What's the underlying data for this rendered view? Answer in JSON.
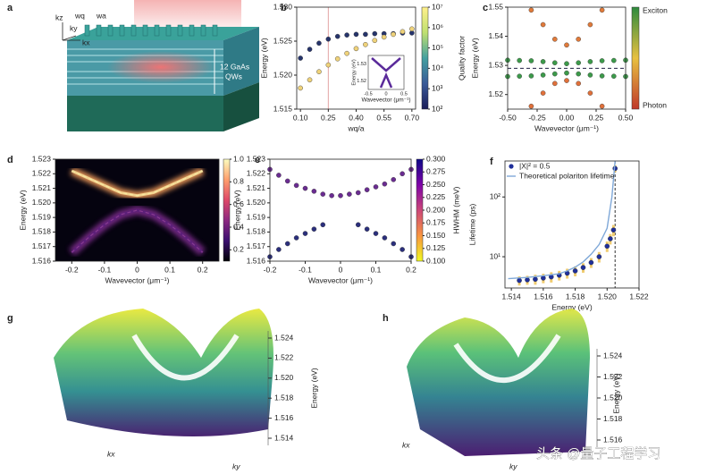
{
  "diagram": {
    "panel": "a",
    "axis_labels": [
      "kz",
      "ky",
      "kx"
    ],
    "widths": [
      "wq",
      "wa"
    ],
    "annotation": [
      "12 GaAs",
      "QWs"
    ]
  },
  "chart_data": [
    {
      "panel": "b",
      "type": "scatter",
      "xlabel": "wq/a",
      "ylabel": "Energy (eV)",
      "xlim": [
        0.08,
        0.72
      ],
      "xticks": [
        {
          "value": 0.1,
          "label": "0.10"
        },
        0.25,
        {
          "value": 0.4,
          "label": "0.40"
        },
        0.55,
        {
          "value": 0.7,
          "label": "0.70"
        }
      ],
      "ylim": [
        1.515,
        1.53
      ],
      "yticks": [
        1.515,
        {
          "value": 1.52,
          "label": "1.520"
        },
        1.525,
        {
          "value": 1.53,
          "label": "1.530"
        }
      ],
      "vlines": [
        0.25
      ],
      "vline_color": "#e4a3a3",
      "x": [
        0.1,
        0.15,
        0.2,
        0.25,
        0.3,
        0.35,
        0.4,
        0.45,
        0.5,
        0.55,
        0.6,
        0.65,
        0.7
      ],
      "series": [
        {
          "color": "#26346b",
          "values": [
            1.5225,
            1.5238,
            1.5247,
            1.5253,
            1.5257,
            1.5259,
            1.526,
            1.526,
            1.5261,
            1.5261,
            1.5261,
            1.5262,
            1.5262
          ]
        },
        {
          "color": "#efd27a",
          "values": [
            1.5181,
            1.5193,
            1.5205,
            1.5215,
            1.5224,
            1.5232,
            1.5239,
            1.5245,
            1.5251,
            1.5256,
            1.526,
            1.5264,
            1.5268
          ]
        }
      ],
      "colorbar": {
        "label": "Quality factor",
        "log": true,
        "lim": [
          100,
          10000000
        ],
        "colors": [
          "#1b1d58",
          "#3a5a98",
          "#44a0a0",
          "#bfe070",
          "#fff08a"
        ],
        "ticks": [
          {
            "value": 100,
            "label": "10²"
          },
          {
            "value": 1000,
            "label": "10³"
          },
          {
            "value": 10000,
            "label": "10⁴"
          },
          {
            "value": 100000,
            "label": "10⁵"
          },
          {
            "value": 1000000,
            "label": "10⁶"
          },
          {
            "value": 10000000,
            "label": "10⁷"
          }
        ]
      },
      "inset": {
        "xlabel": "Wavevector (μm⁻¹)",
        "ylabel": "Energy (eV)",
        "xlim": [
          -0.5,
          0.5
        ],
        "xticks": [
          -0.5,
          0,
          0.5
        ],
        "ylim": [
          1.515,
          1.535
        ],
        "yticks": [
          1.52,
          1.53
        ]
      }
    },
    {
      "panel": "c",
      "type": "scatter",
      "xlabel": "Wavevector (μm⁻¹)",
      "ylabel": "Energy (eV)",
      "xlim": [
        -0.5,
        0.5
      ],
      "xticks": [
        {
          "value": -0.5,
          "label": "-0.50"
        },
        -0.25,
        {
          "value": 0,
          "label": "0.00"
        },
        0.25,
        {
          "value": 0.5,
          "label": "0.50"
        }
      ],
      "ylim": [
        1.515,
        1.55
      ],
      "yticks": [
        1.52,
        1.53,
        1.54,
        1.55
      ],
      "hlines": [
        1.529
      ],
      "series": [
        {
          "color": "#e07a3a",
          "x": [
            -0.3,
            -0.2,
            -0.1,
            0,
            0.1,
            0.2,
            0.3
          ],
          "values": [
            1.549,
            1.544,
            1.539,
            1.537,
            1.539,
            1.544,
            1.549
          ]
        },
        {
          "color": "#3c9a4a",
          "x": [
            -0.5,
            -0.4,
            -0.3,
            -0.2,
            -0.1,
            0,
            0.1,
            0.2,
            0.3,
            0.4,
            0.5
          ],
          "values": [
            1.5318,
            1.5317,
            1.5316,
            1.5313,
            1.5309,
            1.5306,
            1.5309,
            1.5313,
            1.5316,
            1.5317,
            1.5318
          ]
        },
        {
          "color": "#3c9a4a",
          "x": [
            -0.5,
            -0.4,
            -0.3,
            -0.2,
            -0.1,
            0,
            0.1,
            0.2,
            0.3,
            0.4,
            0.5
          ],
          "values": [
            1.5262,
            1.5263,
            1.5264,
            1.5267,
            1.5271,
            1.5274,
            1.5271,
            1.5267,
            1.5264,
            1.5263,
            1.5262
          ]
        },
        {
          "color": "#e0703a",
          "x": [
            -0.3,
            -0.2,
            -0.1,
            0,
            0.1,
            0.2,
            0.3
          ],
          "values": [
            1.516,
            1.5205,
            1.5238,
            1.5248,
            1.5238,
            1.5205,
            1.516
          ]
        }
      ],
      "colorbar": {
        "top_label": "Exciton",
        "bottom_label": "Photon",
        "colors": [
          "#c0392b",
          "#e8c040",
          "#2e8b3e"
        ]
      }
    },
    {
      "panel": "d",
      "type": "density",
      "xlabel": "Wavevector (μm⁻¹)",
      "ylabel": "Energy (eV)",
      "xlim": [
        -0.25,
        0.25
      ],
      "xticks": [
        -0.2,
        -0.1,
        0,
        0.1,
        0.2
      ],
      "ylim": [
        1.516,
        1.523
      ],
      "yticks": [
        1.516,
        1.517,
        1.518,
        1.519,
        {
          "value": 1.52,
          "label": "1.520"
        },
        1.521,
        1.522,
        1.523
      ],
      "x": [
        -0.2,
        -0.15,
        -0.1,
        -0.05,
        0,
        0.05,
        0.1,
        0.15,
        0.2
      ],
      "series": [
        {
          "color": "#f7e7a0",
          "values": [
            1.5222,
            1.5217,
            1.5212,
            1.5207,
            1.5205,
            1.5207,
            1.5212,
            1.5217,
            1.5222
          ]
        },
        {
          "color": "#8a3b8f",
          "values": [
            1.5166,
            1.5176,
            1.5185,
            1.5192,
            1.5195,
            1.5192,
            1.5185,
            1.5176,
            1.5166
          ]
        }
      ],
      "colorbar": {
        "lim": [
          0.1,
          1
        ],
        "colors": [
          "#000004",
          "#3b0f70",
          "#8c2981",
          "#de4968",
          "#fe9f6d",
          "#fcfdbf"
        ],
        "ticks": [
          0.2,
          0.4,
          0.6,
          0.8,
          {
            "value": 1,
            "label": "1.0"
          }
        ]
      }
    },
    {
      "panel": "e",
      "type": "scatter",
      "xlabel": "Wavevector (μm⁻¹)",
      "ylabel": "Energy (eV)",
      "xlim": [
        -0.2,
        0.2
      ],
      "xticks": [
        -0.2,
        -0.1,
        0,
        0.1,
        0.2
      ],
      "ylim": [
        1.516,
        1.523
      ],
      "yticks": [
        1.516,
        1.517,
        1.518,
        1.519,
        {
          "value": 1.52,
          "label": "1.520"
        },
        1.521,
        1.522,
        1.523
      ],
      "series": [
        {
          "color": "#6a2c91",
          "x": [
            -0.2,
            -0.175,
            -0.15,
            -0.125,
            -0.1,
            -0.075,
            -0.05,
            -0.025,
            0,
            0.025,
            0.05,
            0.075,
            0.1,
            0.125,
            0.15,
            0.175,
            0.2
          ],
          "values": [
            1.5223,
            1.5219,
            1.5215,
            1.5212,
            1.521,
            1.5208,
            1.5206,
            1.5205,
            1.5205,
            1.5206,
            1.5207,
            1.5209,
            1.5211,
            1.5213,
            1.5216,
            1.522,
            1.5223
          ]
        },
        {
          "color": "#2b2f7c",
          "x": [
            -0.2,
            -0.175,
            -0.15,
            -0.125,
            -0.1,
            -0.075,
            -0.05,
            0.05,
            0.075,
            0.1,
            0.125,
            0.15,
            0.175,
            0.2
          ],
          "values": [
            1.5163,
            1.5168,
            1.5172,
            1.5176,
            1.5179,
            1.5182,
            1.5185,
            1.5185,
            1.5182,
            1.5179,
            1.5176,
            1.5172,
            1.5168,
            1.5163
          ]
        }
      ],
      "colorbar": {
        "label": "HWHM (meV)",
        "lim": [
          0.1,
          0.3
        ],
        "colors": [
          "#f0f921",
          "#f89540",
          "#cc4778",
          "#7e03a8",
          "#0d0887"
        ],
        "ticks": [
          {
            "value": 0.1,
            "label": "0.100"
          },
          0.125,
          {
            "value": 0.15,
            "label": "0.150"
          },
          0.175,
          {
            "value": 0.2,
            "label": "0.200"
          },
          0.225,
          {
            "value": 0.25,
            "label": "0.250"
          },
          0.275,
          {
            "value": 0.3,
            "label": "0.300"
          }
        ]
      }
    },
    {
      "panel": "f",
      "type": "scatter",
      "xlabel": "Energy (eV)",
      "ylabel": "Lifetime (ps)",
      "ylog": true,
      "xlim": [
        1.5136,
        1.522
      ],
      "xticks": [
        1.514,
        1.516,
        1.518,
        {
          "value": 1.52,
          "label": "1.520"
        },
        1.522
      ],
      "ylim": [
        3,
        400
      ],
      "yticks": [
        {
          "value": 10,
          "label": "10¹"
        },
        {
          "value": 100,
          "label": "10²"
        }
      ],
      "vlines": [
        1.5205
      ],
      "vline_color": "#333333",
      "legend": "upper left",
      "series": [
        {
          "name": "|X|² = 0.5",
          "color": "#1f2f9a",
          "error_color": "#f0cc70",
          "x": [
            1.5145,
            1.515,
            1.5155,
            1.516,
            1.5165,
            1.517,
            1.5175,
            1.518,
            1.5185,
            1.519,
            1.5195,
            1.52,
            1.5202,
            1.5204,
            1.5205
          ],
          "values": [
            4,
            4.1,
            4.2,
            4.4,
            4.6,
            4.9,
            5.3,
            5.8,
            6.6,
            8,
            10,
            15,
            20,
            28,
            300
          ],
          "errors": [
            0.7,
            0.7,
            0.8,
            0.8,
            0.9,
            0.9,
            1,
            1.1,
            1.2,
            1.5,
            2,
            3,
            4,
            6,
            40
          ]
        },
        {
          "name": "Theoretical polariton lifetime",
          "kind": "line",
          "color": "#7fa8d8",
          "x": [
            1.5138,
            1.515,
            1.516,
            1.517,
            1.5175,
            1.518,
            1.5185,
            1.519,
            1.5195,
            1.52,
            1.5203,
            1.5205
          ],
          "values": [
            4.3,
            4.5,
            4.8,
            5.2,
            5.8,
            6.7,
            8.2,
            11,
            16,
            30,
            100,
            400
          ]
        }
      ]
    },
    {
      "panel": "g",
      "type": "surface3d",
      "xlabel": "kx",
      "ylabel": "ky",
      "zlabel": "Energy (eV)",
      "zlim": [
        1.514,
        1.524
      ],
      "zticks": [
        1.514,
        1.516,
        1.518,
        {
          "value": 1.52,
          "label": "1.520"
        },
        1.522,
        1.524
      ]
    },
    {
      "panel": "h",
      "type": "surface3d",
      "xlabel": "kx",
      "ylabel": "ky",
      "zlabel": "Energy (eV)",
      "zlim": [
        1.516,
        1.524
      ],
      "zticks": [
        1.516,
        1.518,
        {
          "value": 1.52,
          "label": "1.520"
        },
        1.522,
        1.524
      ]
    }
  ],
  "watermark": "头条 @量子工程学习"
}
